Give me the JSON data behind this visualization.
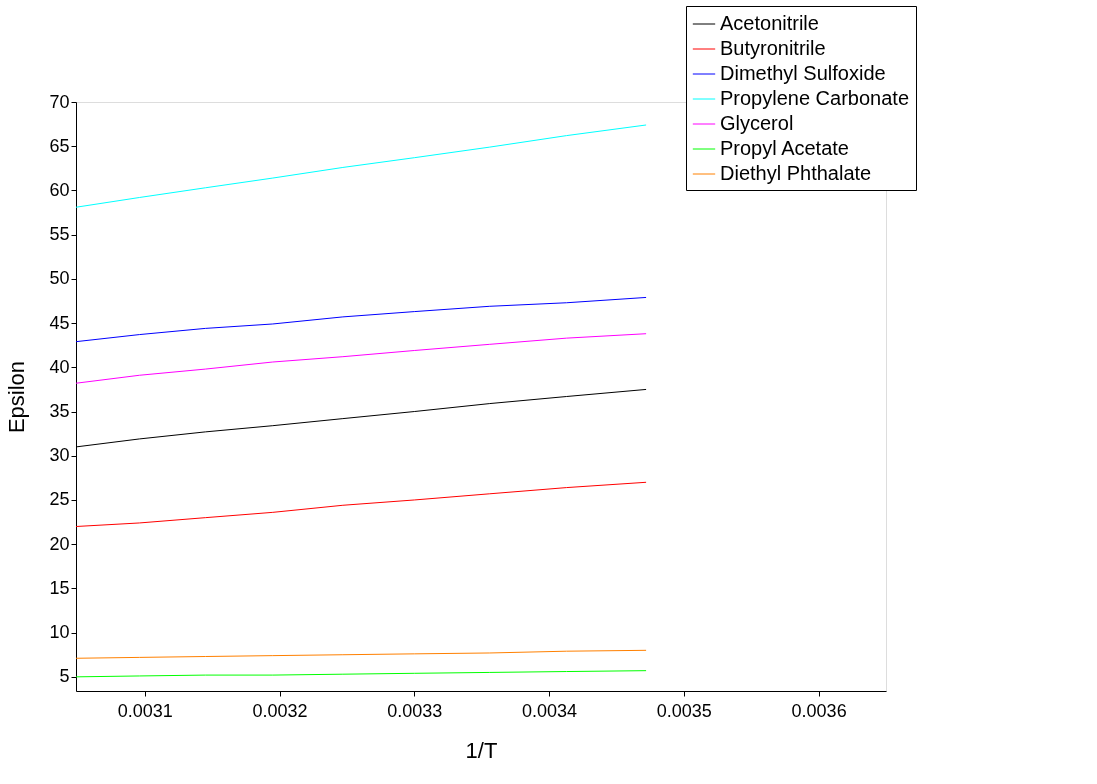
{
  "chart_data": {
    "type": "line",
    "xlabel": "1/T",
    "ylabel": "Epsilon",
    "x": [
      0.003049,
      0.003096,
      0.003145,
      0.003195,
      0.003247,
      0.0033,
      0.003356,
      0.003413,
      0.003472
    ],
    "series": [
      {
        "name": "Acetonitrile",
        "color": "#000000",
        "values": [
          31.0,
          31.9,
          32.7,
          33.4,
          34.2,
          35.0,
          35.9,
          36.7,
          37.5
        ]
      },
      {
        "name": "Butyronitrile",
        "color": "#ff0000",
        "values": [
          22.0,
          22.4,
          23.0,
          23.6,
          24.4,
          25.0,
          25.7,
          26.4,
          27.0
        ]
      },
      {
        "name": "Dimethyl Sulfoxide",
        "color": "#0000ff",
        "values": [
          42.9,
          43.7,
          44.4,
          44.9,
          45.7,
          46.3,
          46.9,
          47.3,
          47.9
        ]
      },
      {
        "name": "Propylene Carbonate",
        "color": "#00ffff",
        "values": [
          58.1,
          59.2,
          60.3,
          61.4,
          62.6,
          63.7,
          64.9,
          66.2,
          67.4
        ]
      },
      {
        "name": "Glycerol",
        "color": "#ff00ff",
        "values": [
          38.2,
          39.1,
          39.8,
          40.6,
          41.2,
          41.9,
          42.6,
          43.3,
          43.8
        ]
      },
      {
        "name": "Propyl Acetate",
        "color": "#00ff00",
        "values": [
          5.0,
          5.1,
          5.2,
          5.2,
          5.3,
          5.4,
          5.5,
          5.6,
          5.7
        ]
      },
      {
        "name": "Diethyl Phthalate",
        "color": "#ff8000",
        "values": [
          7.1,
          7.2,
          7.3,
          7.4,
          7.5,
          7.6,
          7.7,
          7.9,
          8.0
        ]
      }
    ],
    "xlim": [
      0.003049,
      0.00365
    ],
    "xticks": [
      0.0031,
      0.0032,
      0.0033,
      0.0034,
      0.0035,
      0.0036
    ],
    "ylim": [
      3.4,
      70
    ],
    "yticks": [
      5,
      10,
      15,
      20,
      25,
      30,
      35,
      40,
      45,
      50,
      55,
      60,
      65,
      70
    ],
    "grid": false,
    "legend": "top right",
    "marker": "none",
    "line_style": "solid"
  }
}
